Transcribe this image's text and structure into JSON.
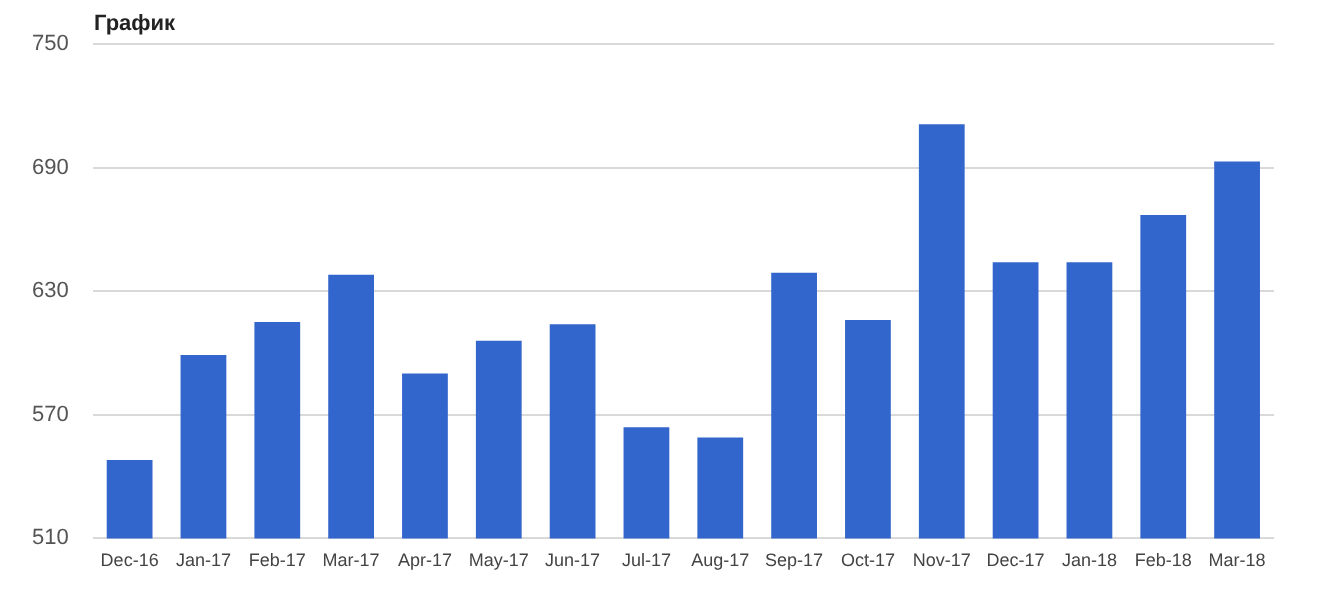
{
  "chart_data": {
    "type": "bar",
    "title": "График",
    "categories": [
      "Dec-16",
      "Jan-17",
      "Feb-17",
      "Mar-17",
      "Apr-17",
      "May-17",
      "Jun-17",
      "Jul-17",
      "Aug-17",
      "Sep-17",
      "Oct-17",
      "Nov-17",
      "Dec-17",
      "Jan-18",
      "Feb-18",
      "Mar-18"
    ],
    "values": [
      548,
      599,
      615,
      638,
      590,
      606,
      614,
      564,
      559,
      639,
      616,
      711,
      644,
      644,
      667,
      693
    ],
    "color": "#3366cc",
    "ylim": [
      510,
      750
    ],
    "yticks": [
      510,
      570,
      630,
      690,
      750
    ],
    "grid": "y",
    "legend": false
  }
}
